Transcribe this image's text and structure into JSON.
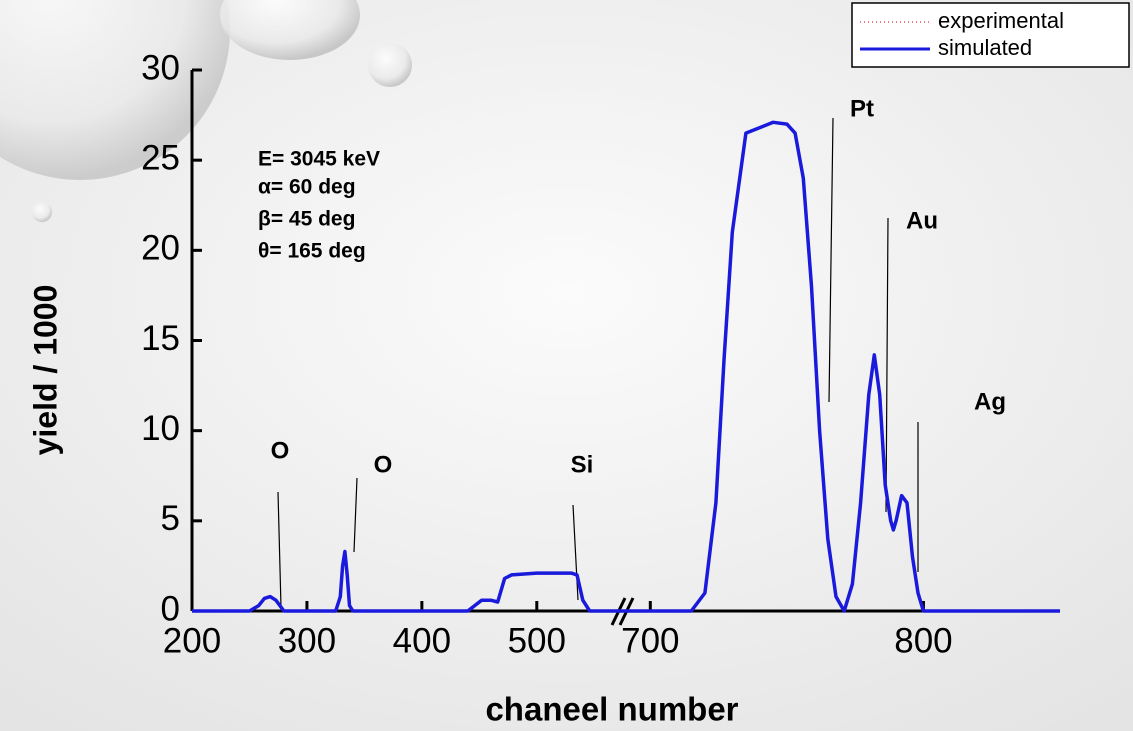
{
  "chart_data": {
    "type": "line",
    "x_label": "chaneel number",
    "y_label": "yield / 1000",
    "annotations": [
      "E= 3045 keV",
      "α= 60 deg",
      "β= 45 deg",
      "θ= 165 deg"
    ],
    "peak_labels": [
      "O",
      "O",
      "Si",
      "Pt",
      "Au",
      "Ag"
    ],
    "xlim": [
      200,
      850
    ],
    "xbreak": [
      575,
      690
    ],
    "xticks": [
      200,
      300,
      400,
      500,
      700,
      800
    ],
    "ylim": [
      0,
      30
    ],
    "yticks": [
      0,
      5,
      10,
      15,
      20,
      25,
      30
    ],
    "x": [
      200,
      250,
      258,
      263,
      268,
      273,
      280,
      290,
      325,
      329,
      331,
      333,
      335,
      337,
      340,
      400,
      440,
      452,
      460,
      466,
      472,
      478,
      500,
      530,
      535,
      540,
      546,
      575,
      690,
      715,
      720,
      724,
      727,
      730,
      735,
      745,
      750,
      753,
      756,
      759,
      762,
      765,
      768,
      771,
      774,
      777,
      780,
      782,
      784,
      786,
      788,
      789,
      790,
      792,
      794,
      796,
      798,
      800,
      850
    ],
    "series": [
      {
        "name": "experimental",
        "color": "#f08080",
        "values": [
          0,
          0,
          0.3,
          0.7,
          0.8,
          0.6,
          0,
          0,
          0,
          0.8,
          2.5,
          3.3,
          2.0,
          0.3,
          0,
          0,
          0,
          0.6,
          0.6,
          0.5,
          1.8,
          2.0,
          2.1,
          2.1,
          2.0,
          0.6,
          0,
          0,
          0,
          0,
          1,
          6,
          14,
          21,
          26.5,
          27.1,
          27,
          26.5,
          24,
          18,
          10,
          4,
          0.8,
          0,
          1.5,
          6,
          12,
          14.2,
          12,
          7,
          5,
          4.5,
          5,
          6.4,
          6,
          3,
          1,
          0,
          0
        ]
      },
      {
        "name": "simulated",
        "color": "#1a1adc",
        "values": [
          0,
          0,
          0.3,
          0.7,
          0.8,
          0.6,
          0,
          0,
          0,
          0.8,
          2.5,
          3.3,
          2.0,
          0.3,
          0,
          0,
          0,
          0.6,
          0.6,
          0.5,
          1.8,
          2.0,
          2.1,
          2.1,
          2.0,
          0.6,
          0,
          0,
          0,
          0,
          1,
          6,
          14,
          21,
          26.5,
          27.1,
          27,
          26.5,
          24,
          18,
          10,
          4,
          0.8,
          0,
          1.5,
          6,
          12,
          14.2,
          12,
          7,
          5,
          4.5,
          5,
          6.4,
          6,
          3,
          1,
          0,
          0
        ]
      }
    ]
  }
}
